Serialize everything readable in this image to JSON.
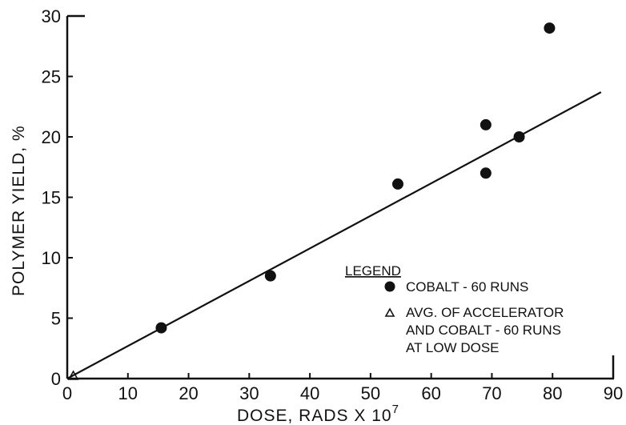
{
  "chart_data": {
    "type": "scatter",
    "xlabel": "DOSE,  RADS X 10",
    "xlabel_exponent": "7",
    "ylabel": "POLYMER YIELD, %",
    "xlim": [
      0,
      90
    ],
    "ylim": [
      0,
      30
    ],
    "x_ticks": [
      "0",
      "10",
      "20",
      "30",
      "40",
      "50",
      "60",
      "70",
      "80",
      "90"
    ],
    "y_ticks": [
      "0",
      "5",
      "10",
      "15",
      "20",
      "25",
      "30"
    ],
    "grid": false,
    "legend_position": "right",
    "legend": {
      "title": "LEGEND",
      "entries": [
        {
          "marker": "filled-circle",
          "text": [
            "COBALT - 60 RUNS"
          ]
        },
        {
          "marker": "open-triangle",
          "text": [
            "AVG. OF ACCELERATOR",
            "AND COBALT - 60 RUNS",
            "AT LOW DOSE"
          ]
        }
      ]
    },
    "series": [
      {
        "name": "COBALT - 60 RUNS",
        "marker": "filled-circle",
        "points": [
          {
            "x": 15.5,
            "y": 4.2
          },
          {
            "x": 33.5,
            "y": 8.5
          },
          {
            "x": 54.5,
            "y": 16.1
          },
          {
            "x": 69,
            "y": 21
          },
          {
            "x": 69,
            "y": 17
          },
          {
            "x": 74.5,
            "y": 20
          },
          {
            "x": 79.5,
            "y": 29
          }
        ]
      },
      {
        "name": "AVG. OF ACCELERATOR AND COBALT - 60 RUNS AT LOW DOSE",
        "marker": "open-triangle",
        "points": [
          {
            "x": 1,
            "y": 0.2
          }
        ]
      }
    ],
    "fit_line": {
      "from": {
        "x": 0,
        "y": 0
      },
      "to": {
        "x": 88,
        "y": 23.7
      }
    }
  }
}
